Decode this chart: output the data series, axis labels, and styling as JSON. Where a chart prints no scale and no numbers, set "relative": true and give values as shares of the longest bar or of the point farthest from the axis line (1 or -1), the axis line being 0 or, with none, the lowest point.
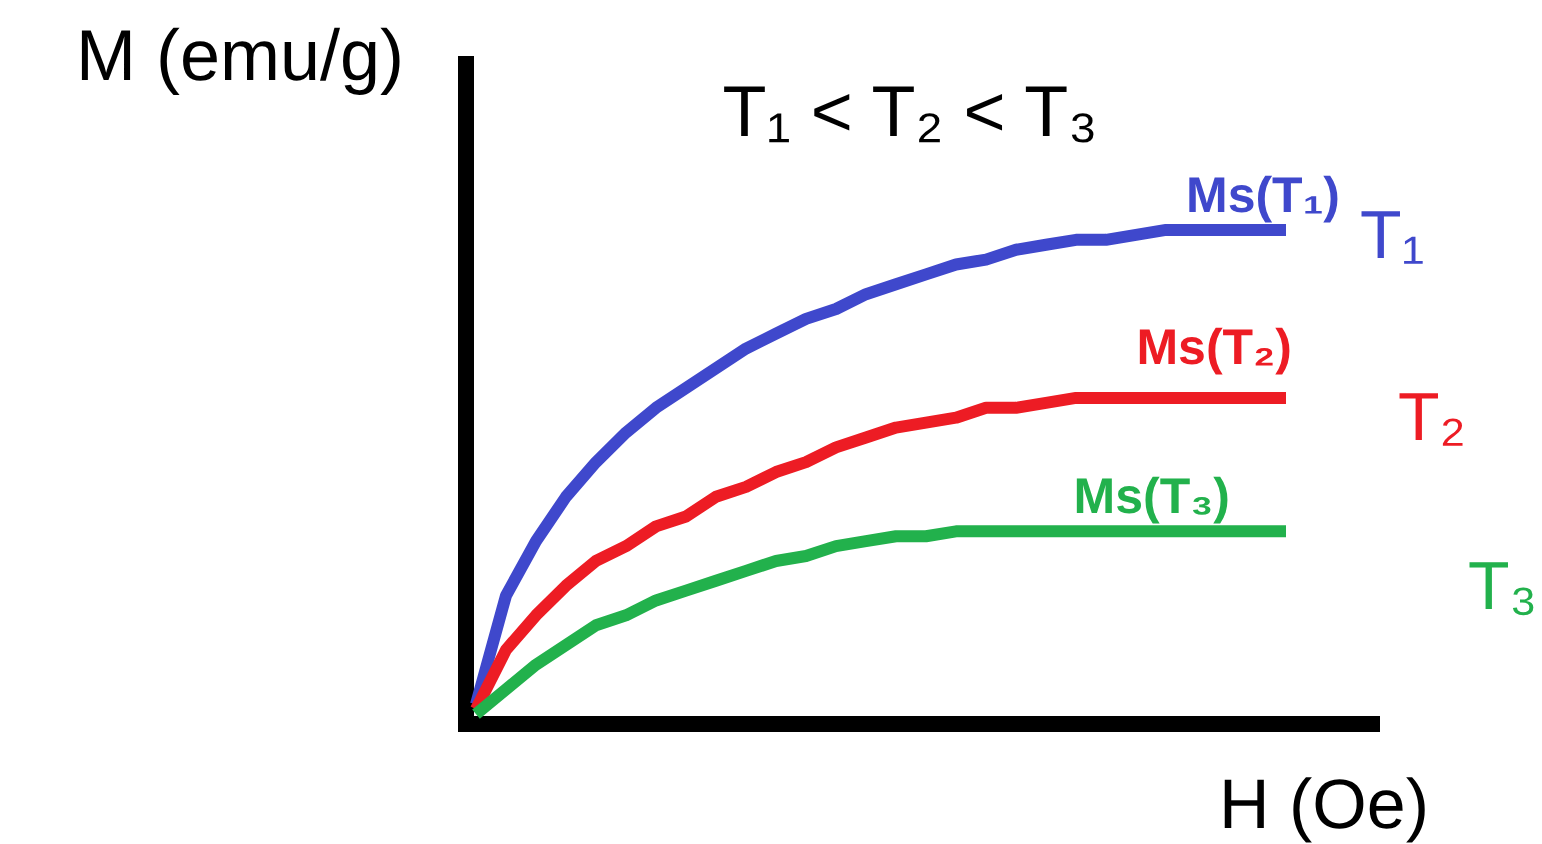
{
  "chart_data": {
    "type": "line",
    "relative": true,
    "title": "T₁ < T₂ < T₃",
    "xlabel": "H (Oe)",
    "ylabel": "M (emu/g)",
    "line_style": "solid",
    "categories": [
      null,
      null,
      null,
      null,
      null,
      null,
      null,
      null,
      null,
      null,
      null,
      null,
      null,
      null,
      null,
      null,
      null,
      null,
      null,
      null,
      null,
      null,
      null,
      null,
      null,
      null,
      null,
      null
    ],
    "series": [
      {
        "name": "T₁",
        "color": "#3f48cc",
        "values": [
          0.04,
          0.26,
          0.37,
          0.46,
          0.53,
          0.59,
          0.64,
          0.68,
          0.72,
          0.76,
          0.79,
          0.82,
          0.84,
          0.87,
          0.89,
          0.91,
          0.93,
          0.94,
          0.96,
          0.97,
          0.98,
          0.98,
          0.99,
          1,
          1,
          1,
          1,
          1
        ]
      },
      {
        "name": "T₂",
        "color": "#ed1c24",
        "values": [
          0.03,
          0.15,
          0.22,
          0.28,
          0.33,
          0.36,
          0.4,
          0.42,
          0.46,
          0.48,
          0.51,
          0.53,
          0.56,
          0.58,
          0.6,
          0.61,
          0.62,
          0.64,
          0.64,
          0.65,
          0.66,
          0.66,
          0.66,
          0.66,
          0.66,
          0.66,
          0.66,
          0.66
        ]
      },
      {
        "name": "T₃",
        "color": "#22b14c",
        "values": [
          0.02,
          0.07,
          0.12,
          0.16,
          0.2,
          0.22,
          0.25,
          0.27,
          0.29,
          0.31,
          0.33,
          0.34,
          0.36,
          0.37,
          0.38,
          0.38,
          0.39,
          0.39,
          0.39,
          0.39,
          0.39,
          0.39,
          0.39,
          0.39,
          0.39,
          0.39,
          0.39,
          0.39
        ]
      }
    ],
    "annotations": [
      {
        "text": "Ms(T₁)",
        "y": 1
      },
      {
        "text": "Ms(T₂)",
        "y": 0.66
      },
      {
        "text": "Ms(T₃)",
        "y": 0.39
      }
    ]
  }
}
